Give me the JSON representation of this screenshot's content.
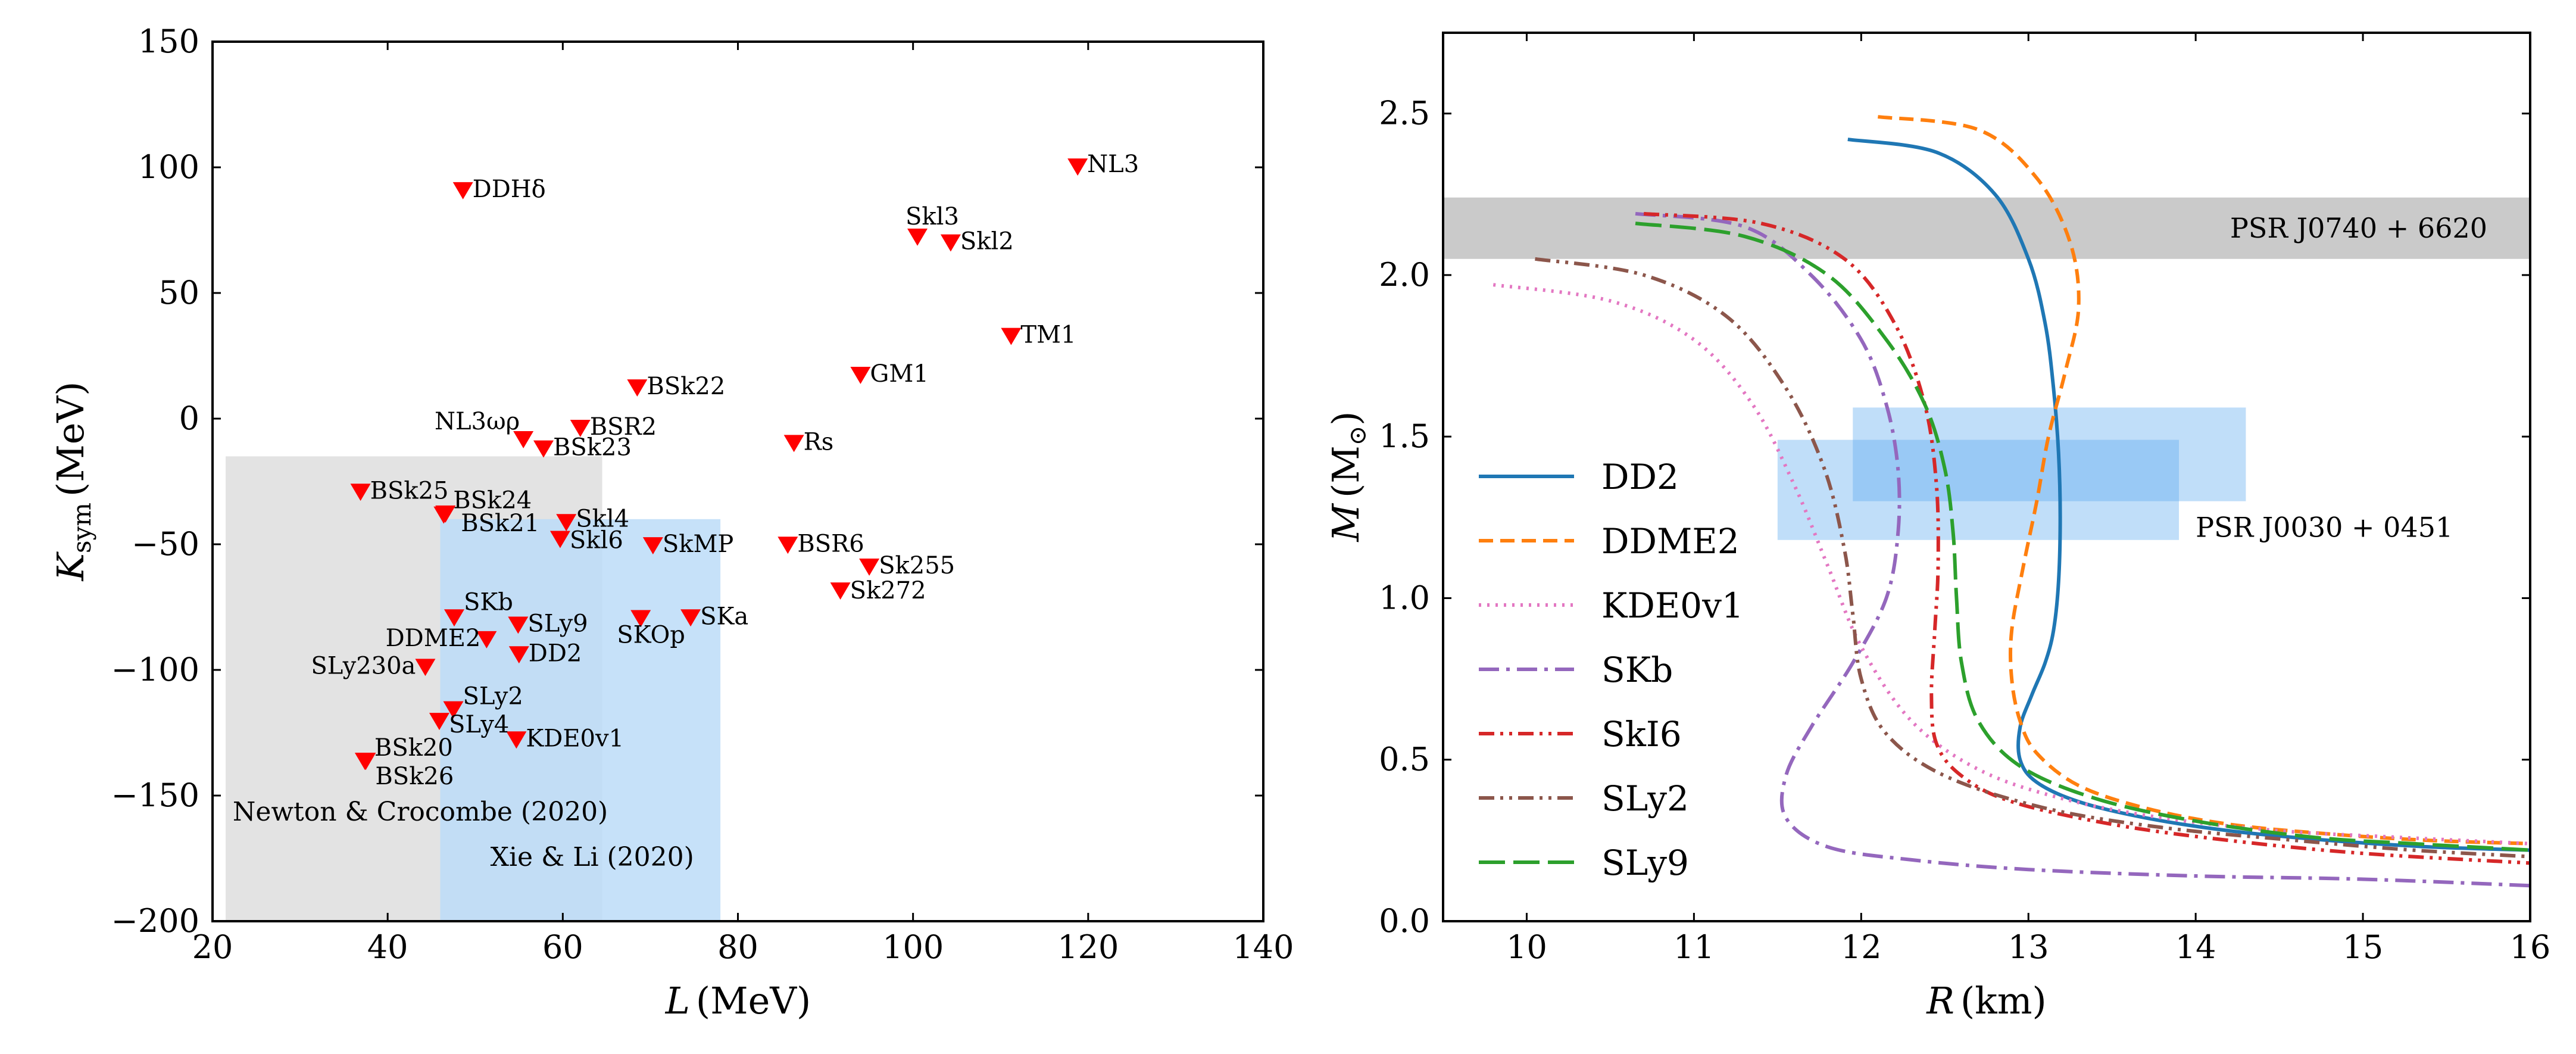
{
  "chart_data": [
    {
      "type": "scatter",
      "xlabel": "L (MeV)",
      "ylabel": "K_sym (MeV)",
      "xlabel_parts": [
        "L",
        "(MeV)"
      ],
      "ylabel_parts": [
        "K",
        "sym",
        "(MeV)"
      ],
      "xlim": [
        20,
        140
      ],
      "ylim": [
        -200,
        150
      ],
      "xticks": [
        20,
        40,
        60,
        80,
        100,
        120,
        140
      ],
      "yticks": [
        -200,
        -150,
        -100,
        -50,
        0,
        50,
        100,
        150
      ],
      "xtick_labels": [
        "20",
        "40",
        "60",
        "80",
        "100",
        "120",
        "140"
      ],
      "ytick_labels": [
        "−200",
        "−150",
        "−100",
        "−50",
        "0",
        "50",
        "100",
        "150"
      ],
      "marker_color": "#ff0000",
      "regions": [
        {
          "label": "Newton & Crocombe (2020)",
          "x": [
            21.5,
            64.5
          ],
          "y": [
            -200,
            -15
          ],
          "color": "#e3e3e3"
        },
        {
          "label": "Xie & Li (2020)",
          "x": [
            46,
            78
          ],
          "y": [
            -200,
            -40
          ],
          "color": "#bcdcf8"
        }
      ],
      "points": [
        {
          "name": "NL3",
          "L": 118.8,
          "Ksym": 100.9
        },
        {
          "name": "DDHδ",
          "L": 48.6,
          "Ksym": 91.5
        },
        {
          "name": "Skl3",
          "L": 100.5,
          "Ksym": 73.0
        },
        {
          "name": "Skl2",
          "L": 104.3,
          "Ksym": 70.7
        },
        {
          "name": "TM1",
          "L": 111.2,
          "Ksym": 33.5
        },
        {
          "name": "GM1",
          "L": 94.0,
          "Ksym": 18.0
        },
        {
          "name": "BSk22",
          "L": 68.5,
          "Ksym": 13.0
        },
        {
          "name": "NL3ωρ",
          "L": 55.5,
          "Ksym": -7.6
        },
        {
          "name": "BSR2",
          "L": 62.0,
          "Ksym": -3.1
        },
        {
          "name": "BSk23",
          "L": 57.8,
          "Ksym": -11.3
        },
        {
          "name": "Rs",
          "L": 86.4,
          "Ksym": -9.1
        },
        {
          "name": "BSk25",
          "L": 36.9,
          "Ksym": -28.5
        },
        {
          "name": "BSk24",
          "L": 46.4,
          "Ksym": -37.6
        },
        {
          "name": "BSk21",
          "L": 46.6,
          "Ksym": -37.2
        },
        {
          "name": "Skl4",
          "L": 60.4,
          "Ksym": -40.6
        },
        {
          "name": "Skl6",
          "L": 59.7,
          "Ksym": -47.3
        },
        {
          "name": "SkMP",
          "L": 70.3,
          "Ksym": -49.8
        },
        {
          "name": "BSR6",
          "L": 85.7,
          "Ksym": -49.6
        },
        {
          "name": "Sk255",
          "L": 95.0,
          "Ksym": -58.3
        },
        {
          "name": "Sk272",
          "L": 91.7,
          "Ksym": -67.8
        },
        {
          "name": "SKb",
          "L": 47.6,
          "Ksym": -78.5
        },
        {
          "name": "SLy9",
          "L": 54.9,
          "Ksym": -81.4
        },
        {
          "name": "SKOp",
          "L": 68.9,
          "Ksym": -78.8
        },
        {
          "name": "SKa",
          "L": 74.6,
          "Ksym": -78.5
        },
        {
          "name": "DDME2",
          "L": 51.3,
          "Ksym": -87.2
        },
        {
          "name": "DD2",
          "L": 55.0,
          "Ksym": -93.2
        },
        {
          "name": "SLy230a",
          "L": 44.3,
          "Ksym": -98.2
        },
        {
          "name": "SLy2",
          "L": 47.5,
          "Ksym": -115.1
        },
        {
          "name": "SLy4",
          "L": 45.9,
          "Ksym": -119.7
        },
        {
          "name": "KDE0v1",
          "L": 54.7,
          "Ksym": -127.1
        },
        {
          "name": "BSk20",
          "L": 37.4,
          "Ksym": -135.6
        },
        {
          "name": "BSk26",
          "L": 37.5,
          "Ksym": -135.6
        }
      ]
    },
    {
      "type": "line",
      "xlabel": "R (km)",
      "ylabel": "M (M_⊙)",
      "xlabel_parts": [
        "R",
        "(km)"
      ],
      "ylabel_parts": [
        "M",
        "(M",
        "⊙",
        ")"
      ],
      "xlim": [
        9.5,
        16
      ],
      "ylim": [
        0,
        2.75
      ],
      "xticks": [
        10,
        11,
        12,
        13,
        14,
        15,
        16
      ],
      "yticks": [
        0.0,
        0.5,
        1.0,
        1.5,
        2.0,
        2.5
      ],
      "xtick_labels": [
        "10",
        "11",
        "12",
        "13",
        "14",
        "15",
        "16"
      ],
      "ytick_labels": [
        "0.0",
        "0.5",
        "1.0",
        "1.5",
        "2.0",
        "2.5"
      ],
      "bands": [
        {
          "label": "PSR J0740 + 6620",
          "x": [
            9.5,
            16
          ],
          "y": [
            2.05,
            2.24
          ],
          "color": "#c7c7c7"
        },
        {
          "label": "PSR J0030 + 0451",
          "boxes": [
            {
              "x": [
                11.95,
                14.3
              ],
              "y": [
                1.3,
                1.59
              ]
            },
            {
              "x": [
                11.5,
                13.9
              ],
              "y": [
                1.18,
                1.49
              ]
            }
          ],
          "color": "#5aa7ee"
        }
      ],
      "series": [
        {
          "name": "DD2",
          "color": "#1f77b4",
          "dash": "solid",
          "R": [
            11.92,
            12.45,
            12.8,
            13.0,
            13.1,
            13.15,
            13.18,
            13.19,
            13.18,
            13.15,
            13.1,
            13.02,
            12.95,
            12.95,
            13.05,
            13.3,
            13.7,
            14.2,
            14.8,
            15.4,
            16.0
          ],
          "M": [
            2.42,
            2.38,
            2.25,
            2.05,
            1.85,
            1.65,
            1.45,
            1.25,
            1.05,
            0.9,
            0.8,
            0.7,
            0.6,
            0.5,
            0.43,
            0.37,
            0.32,
            0.28,
            0.25,
            0.23,
            0.22
          ]
        },
        {
          "name": "DDME2",
          "color": "#ff7f0e",
          "dash": "dashed",
          "R": [
            12.1,
            12.7,
            13.05,
            13.25,
            13.3,
            13.22,
            13.12,
            13.05,
            12.97,
            12.9,
            12.9,
            12.95,
            13.05,
            13.3,
            13.7,
            14.2,
            14.8,
            15.4,
            16.0
          ],
          "M": [
            2.49,
            2.45,
            2.3,
            2.1,
            1.9,
            1.7,
            1.5,
            1.3,
            1.1,
            0.9,
            0.75,
            0.62,
            0.52,
            0.42,
            0.35,
            0.3,
            0.27,
            0.25,
            0.24
          ]
        },
        {
          "name": "KDE0v1",
          "color": "#e377c2",
          "dash": "dotted",
          "R": [
            9.8,
            10.5,
            11.0,
            11.35,
            11.6,
            11.8,
            12.0,
            12.3,
            12.7,
            13.2,
            13.8,
            14.5,
            15.2,
            16.0
          ],
          "M": [
            1.97,
            1.92,
            1.8,
            1.6,
            1.35,
            1.1,
            0.85,
            0.62,
            0.47,
            0.38,
            0.32,
            0.28,
            0.26,
            0.24
          ]
        },
        {
          "name": "SKb",
          "color": "#9467bd",
          "dash": "dashdot",
          "R": [
            10.65,
            11.3,
            11.7,
            12.0,
            12.15,
            12.22,
            12.22,
            12.15,
            11.95,
            11.7,
            11.55,
            11.55,
            11.8,
            12.3,
            13.0,
            14.0,
            15.0,
            16.0
          ],
          "M": [
            2.19,
            2.15,
            2.0,
            1.8,
            1.6,
            1.4,
            1.2,
            1.0,
            0.8,
            0.6,
            0.45,
            0.32,
            0.23,
            0.19,
            0.16,
            0.14,
            0.13,
            0.11
          ]
        },
        {
          "name": "SkI6",
          "color": "#d62728",
          "dash": "dashdotdot",
          "R": [
            10.7,
            11.4,
            11.9,
            12.2,
            12.38,
            12.45,
            12.46,
            12.44,
            12.42,
            12.45,
            12.6,
            12.9,
            13.5,
            14.2,
            15.0,
            16.0
          ],
          "M": [
            2.19,
            2.16,
            2.05,
            1.85,
            1.6,
            1.35,
            1.1,
            0.9,
            0.7,
            0.55,
            0.45,
            0.37,
            0.3,
            0.25,
            0.21,
            0.18
          ]
        },
        {
          "name": "SLy2",
          "color": "#8c564b",
          "dash": "dashdotdot",
          "R": [
            10.05,
            10.7,
            11.2,
            11.55,
            11.78,
            11.9,
            11.95,
            12.0,
            12.15,
            12.5,
            13.1,
            13.8,
            14.6,
            15.3,
            16.0
          ],
          "M": [
            2.05,
            2.0,
            1.87,
            1.65,
            1.4,
            1.15,
            0.95,
            0.75,
            0.58,
            0.45,
            0.35,
            0.29,
            0.25,
            0.22,
            0.2
          ]
        },
        {
          "name": "SLy9",
          "color": "#2ca02c",
          "dash": "longdash",
          "R": [
            10.65,
            11.3,
            11.8,
            12.15,
            12.38,
            12.5,
            12.55,
            12.57,
            12.6,
            12.7,
            12.95,
            13.4,
            14.0,
            14.7,
            15.3,
            16.0
          ],
          "M": [
            2.16,
            2.12,
            2.0,
            1.8,
            1.6,
            1.4,
            1.2,
            1.0,
            0.8,
            0.62,
            0.48,
            0.38,
            0.31,
            0.26,
            0.24,
            0.22
          ]
        }
      ]
    }
  ]
}
